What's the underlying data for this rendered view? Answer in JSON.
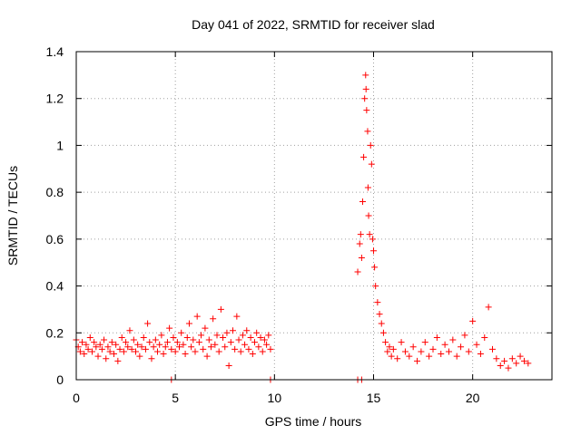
{
  "chart_data": {
    "type": "scatter",
    "title": "Day 041 of 2022, SRMTID for receiver slad",
    "xlabel": "GPS time / hours",
    "ylabel": "SRMTID / TECUs",
    "xlim": [
      0,
      24
    ],
    "ylim": [
      0,
      1.4
    ],
    "xticks": [
      0,
      5,
      10,
      15,
      20
    ],
    "xtick_labels": [
      "0",
      "5",
      "10",
      "15",
      "20"
    ],
    "yticks": [
      0,
      0.2,
      0.4,
      0.6,
      0.8,
      1.0,
      1.2,
      1.4
    ],
    "ytick_labels": [
      "0",
      "0.2",
      "0.4",
      "0.6",
      "0.8",
      "1",
      "1.2",
      "1.4"
    ],
    "grid": true,
    "marker": "plus",
    "color": "#ff0000",
    "series": [
      {
        "name": "SRMTID",
        "points": [
          [
            0.0,
            0.17
          ],
          [
            0.1,
            0.14
          ],
          [
            0.2,
            0.12
          ],
          [
            0.3,
            0.16
          ],
          [
            0.4,
            0.11
          ],
          [
            0.5,
            0.15
          ],
          [
            0.6,
            0.13
          ],
          [
            0.7,
            0.18
          ],
          [
            0.8,
            0.12
          ],
          [
            0.9,
            0.16
          ],
          [
            1.0,
            0.14
          ],
          [
            1.1,
            0.1
          ],
          [
            1.2,
            0.15
          ],
          [
            1.3,
            0.13
          ],
          [
            1.4,
            0.17
          ],
          [
            1.5,
            0.09
          ],
          [
            1.6,
            0.14
          ],
          [
            1.7,
            0.12
          ],
          [
            1.8,
            0.16
          ],
          [
            1.9,
            0.11
          ],
          [
            2.0,
            0.15
          ],
          [
            2.1,
            0.08
          ],
          [
            2.2,
            0.13
          ],
          [
            2.3,
            0.18
          ],
          [
            2.4,
            0.12
          ],
          [
            2.5,
            0.16
          ],
          [
            2.6,
            0.14
          ],
          [
            2.7,
            0.21
          ],
          [
            2.8,
            0.13
          ],
          [
            2.9,
            0.17
          ],
          [
            3.0,
            0.12
          ],
          [
            3.1,
            0.15
          ],
          [
            3.2,
            0.1
          ],
          [
            3.3,
            0.14
          ],
          [
            3.4,
            0.18
          ],
          [
            3.5,
            0.13
          ],
          [
            3.6,
            0.24
          ],
          [
            3.7,
            0.16
          ],
          [
            3.8,
            0.09
          ],
          [
            3.9,
            0.14
          ],
          [
            4.0,
            0.17
          ],
          [
            4.1,
            0.12
          ],
          [
            4.2,
            0.15
          ],
          [
            4.3,
            0.19
          ],
          [
            4.4,
            0.11
          ],
          [
            4.5,
            0.14
          ],
          [
            4.6,
            0.16
          ],
          [
            4.7,
            0.22
          ],
          [
            4.8,
            0.13
          ],
          [
            4.9,
            0.18
          ],
          [
            5.0,
            0.12
          ],
          [
            5.1,
            0.16
          ],
          [
            5.2,
            0.14
          ],
          [
            5.3,
            0.2
          ],
          [
            5.4,
            0.15
          ],
          [
            5.5,
            0.11
          ],
          [
            5.6,
            0.18
          ],
          [
            5.7,
            0.24
          ],
          [
            5.8,
            0.14
          ],
          [
            5.9,
            0.17
          ],
          [
            6.0,
            0.12
          ],
          [
            6.1,
            0.27
          ],
          [
            6.2,
            0.16
          ],
          [
            6.3,
            0.19
          ],
          [
            6.4,
            0.13
          ],
          [
            6.5,
            0.22
          ],
          [
            6.6,
            0.1
          ],
          [
            6.7,
            0.17
          ],
          [
            6.8,
            0.14
          ],
          [
            6.9,
            0.26
          ],
          [
            7.0,
            0.15
          ],
          [
            7.1,
            0.19
          ],
          [
            7.2,
            0.12
          ],
          [
            7.3,
            0.3
          ],
          [
            7.4,
            0.18
          ],
          [
            7.5,
            0.14
          ],
          [
            7.6,
            0.2
          ],
          [
            7.7,
            0.06
          ],
          [
            7.8,
            0.16
          ],
          [
            7.9,
            0.21
          ],
          [
            8.0,
            0.13
          ],
          [
            8.1,
            0.27
          ],
          [
            8.2,
            0.17
          ],
          [
            8.3,
            0.12
          ],
          [
            8.4,
            0.19
          ],
          [
            8.5,
            0.15
          ],
          [
            8.6,
            0.21
          ],
          [
            8.7,
            0.13
          ],
          [
            8.8,
            0.18
          ],
          [
            8.9,
            0.11
          ],
          [
            9.0,
            0.16
          ],
          [
            9.1,
            0.2
          ],
          [
            9.2,
            0.14
          ],
          [
            9.3,
            0.18
          ],
          [
            9.4,
            0.12
          ],
          [
            9.5,
            0.17
          ],
          [
            9.6,
            0.15
          ],
          [
            9.7,
            0.19
          ],
          [
            9.8,
            0.13
          ],
          [
            4.8,
            0.0
          ],
          [
            9.8,
            0.0
          ],
          [
            14.2,
            0.0
          ],
          [
            14.4,
            0.0
          ],
          [
            14.2,
            0.46
          ],
          [
            14.3,
            0.58
          ],
          [
            14.35,
            0.62
          ],
          [
            14.4,
            0.52
          ],
          [
            14.45,
            0.76
          ],
          [
            14.5,
            0.95
          ],
          [
            14.55,
            1.2
          ],
          [
            14.6,
            1.3
          ],
          [
            14.62,
            1.24
          ],
          [
            14.65,
            1.15
          ],
          [
            14.7,
            1.06
          ],
          [
            14.72,
            0.82
          ],
          [
            14.75,
            0.7
          ],
          [
            14.8,
            0.62
          ],
          [
            14.85,
            1.0
          ],
          [
            14.9,
            0.92
          ],
          [
            14.95,
            0.6
          ],
          [
            15.0,
            0.55
          ],
          [
            15.05,
            0.48
          ],
          [
            15.1,
            0.4
          ],
          [
            15.2,
            0.33
          ],
          [
            15.3,
            0.28
          ],
          [
            15.4,
            0.24
          ],
          [
            15.5,
            0.2
          ],
          [
            15.6,
            0.16
          ],
          [
            15.7,
            0.12
          ],
          [
            15.8,
            0.14
          ],
          [
            15.9,
            0.1
          ],
          [
            16.0,
            0.13
          ],
          [
            16.2,
            0.09
          ],
          [
            16.4,
            0.16
          ],
          [
            16.6,
            0.12
          ],
          [
            16.8,
            0.1
          ],
          [
            17.0,
            0.14
          ],
          [
            17.2,
            0.08
          ],
          [
            17.4,
            0.12
          ],
          [
            17.6,
            0.16
          ],
          [
            17.8,
            0.1
          ],
          [
            18.0,
            0.13
          ],
          [
            18.2,
            0.18
          ],
          [
            18.4,
            0.11
          ],
          [
            18.6,
            0.15
          ],
          [
            18.8,
            0.12
          ],
          [
            19.0,
            0.17
          ],
          [
            19.2,
            0.1
          ],
          [
            19.4,
            0.14
          ],
          [
            19.6,
            0.19
          ],
          [
            19.8,
            0.12
          ],
          [
            20.0,
            0.25
          ],
          [
            20.2,
            0.15
          ],
          [
            20.4,
            0.11
          ],
          [
            20.6,
            0.18
          ],
          [
            20.8,
            0.31
          ],
          [
            21.0,
            0.13
          ],
          [
            21.2,
            0.09
          ],
          [
            21.4,
            0.06
          ],
          [
            21.6,
            0.08
          ],
          [
            21.8,
            0.05
          ],
          [
            22.0,
            0.09
          ],
          [
            22.2,
            0.07
          ],
          [
            22.4,
            0.1
          ],
          [
            22.6,
            0.08
          ],
          [
            22.8,
            0.07
          ]
        ]
      }
    ]
  }
}
